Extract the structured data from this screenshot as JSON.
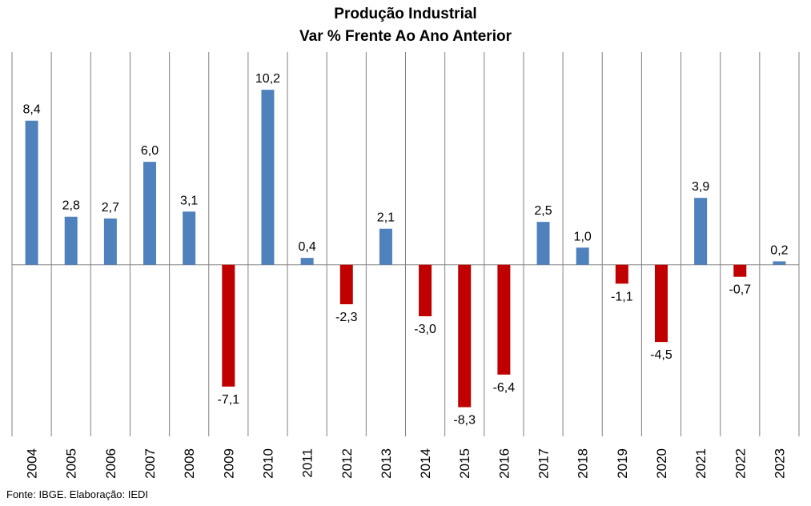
{
  "chart_data": {
    "type": "bar",
    "title": [
      "Produção Industrial",
      "Var % Frente Ao Ano Anterior"
    ],
    "xlabel": "",
    "ylabel": "",
    "categories": [
      "2004",
      "2005",
      "2006",
      "2007",
      "2008",
      "2009",
      "2010",
      "2011",
      "2012",
      "2013",
      "2014",
      "2015",
      "2016",
      "2017",
      "2018",
      "2019",
      "2020",
      "2021",
      "2022",
      "2023"
    ],
    "values": [
      8.4,
      2.8,
      2.7,
      6.0,
      3.1,
      -7.1,
      10.2,
      0.4,
      -2.3,
      2.1,
      -3.0,
      -8.3,
      -6.4,
      2.5,
      1.0,
      -1.1,
      -4.5,
      3.9,
      -0.7,
      0.2
    ],
    "value_labels": [
      "8,4",
      "2,8",
      "2,7",
      "6,0",
      "3,1",
      "-7,1",
      "10,2",
      "0,4",
      "-2,3",
      "2,1",
      "-3,0",
      "-8,3",
      "-6,4",
      "2,5",
      "1,0",
      "-1,1",
      "-4,5",
      "3,9",
      "-0,7",
      "0,2"
    ],
    "ylim": [
      -10,
      12.4
    ],
    "grid": "vertical",
    "legend": "none",
    "colors": {
      "positive": "#4f81bd",
      "negative": "#c00000",
      "grid": "#808080",
      "axis": "#808080"
    }
  },
  "footer": {
    "source": "Fonte: IBGE. Elaboração: IEDI"
  }
}
